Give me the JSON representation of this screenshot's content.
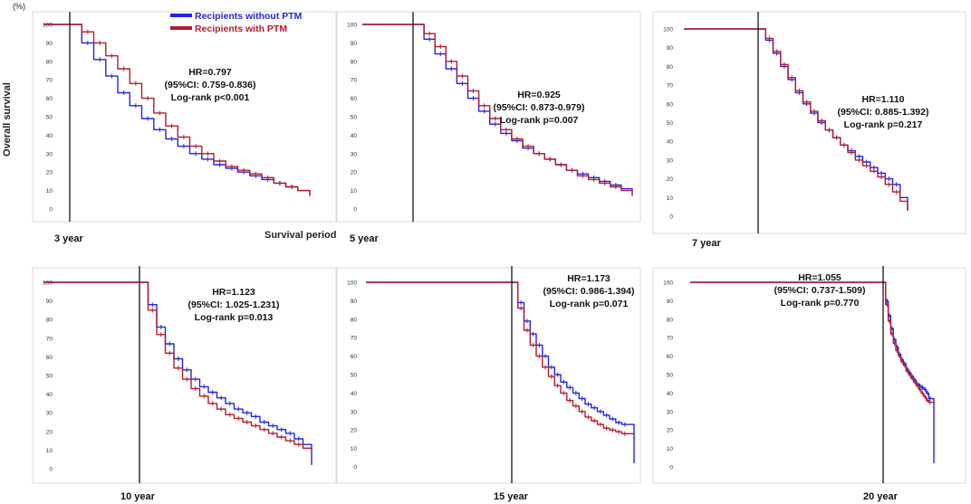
{
  "figure": {
    "unit_label": "(%)",
    "ylabel": "Overall survival",
    "survival_period_label": "Survival period",
    "y_ticks": [
      0,
      10,
      20,
      30,
      40,
      50,
      60,
      70,
      80,
      90,
      100
    ],
    "legend": [
      {
        "name": "Recipients without PTM",
        "color": "#2323e6"
      },
      {
        "name": "Recipients with PTM",
        "color": "#b01c2e"
      }
    ]
  },
  "colors": {
    "without_ptm": "#2323e6",
    "with_ptm": "#b01c2e",
    "landmark": "#000000"
  },
  "chart_data": [
    {
      "type": "line",
      "landmark_label": "3 year",
      "hr": "HR=0.797",
      "ci": "(95%CI: 0.759-0.836)",
      "logrank": "Log-rank p<0.001",
      "x": [
        0,
        0.05,
        0.1,
        0.15,
        0.2,
        0.25,
        0.3,
        0.35,
        0.4,
        0.45,
        0.5,
        0.55,
        0.6,
        0.65,
        0.7,
        0.75,
        0.8,
        0.85,
        0.9,
        0.95,
        1.0
      ],
      "series": [
        {
          "name": "Recipients without PTM",
          "values": [
            100,
            90,
            81,
            72,
            63,
            56,
            49,
            43,
            38,
            34,
            30,
            27,
            24,
            22,
            20,
            18,
            16,
            14,
            12,
            10,
            8
          ]
        },
        {
          "name": "Recipients with PTM",
          "values": [
            100,
            96,
            90,
            83,
            76,
            68,
            60,
            52,
            45,
            39,
            34,
            30,
            26,
            23,
            21,
            19,
            17,
            14,
            12,
            10,
            7
          ]
        }
      ]
    },
    {
      "type": "line",
      "landmark_label": "5 year",
      "hr": "HR=0.925",
      "ci": "(95%CI: 0.873-0.979)",
      "logrank": "Log-rank p=0.007",
      "x": [
        0,
        0.05,
        0.1,
        0.15,
        0.2,
        0.25,
        0.3,
        0.35,
        0.4,
        0.45,
        0.5,
        0.55,
        0.6,
        0.65,
        0.7,
        0.75,
        0.8,
        0.85,
        0.9,
        0.95,
        1.0
      ],
      "series": [
        {
          "name": "Recipients without PTM",
          "values": [
            100,
            92,
            84,
            76,
            68,
            60,
            53,
            46,
            41,
            37,
            33,
            30,
            27,
            24,
            21,
            19,
            17,
            15,
            13,
            11,
            9
          ]
        },
        {
          "name": "Recipients with PTM",
          "values": [
            100,
            95,
            88,
            80,
            72,
            64,
            56,
            49,
            43,
            38,
            34,
            30,
            27,
            24,
            21,
            18,
            16,
            14,
            12,
            10,
            7
          ]
        }
      ]
    },
    {
      "type": "line",
      "landmark_label": "7 year",
      "hr": "HR=1.110",
      "ci": "(95%CI: 0.885-1.392)",
      "logrank": "Log-rank p=0.217",
      "x": [
        0,
        0.05,
        0.1,
        0.15,
        0.2,
        0.25,
        0.3,
        0.35,
        0.4,
        0.45,
        0.5,
        0.55,
        0.6,
        0.65,
        0.7,
        0.75,
        0.8,
        0.85,
        0.9,
        0.95,
        1.0
      ],
      "series": [
        {
          "name": "Recipients without PTM",
          "values": [
            100,
            94,
            87,
            80,
            73,
            66,
            60,
            55,
            50,
            46,
            42,
            38,
            35,
            32,
            29,
            26,
            23,
            20,
            17,
            10,
            3
          ]
        },
        {
          "name": "Recipients with PTM",
          "values": [
            100,
            95,
            88,
            81,
            74,
            67,
            61,
            56,
            51,
            46,
            42,
            38,
            34,
            30,
            27,
            24,
            21,
            17,
            13,
            8,
            3
          ]
        }
      ]
    },
    {
      "type": "line",
      "landmark_label": "10 year",
      "hr": "HR=1.123",
      "ci": "(95%CI: 1.025-1.231)",
      "logrank": "Log-rank p=0.013",
      "x": [
        0,
        0.05,
        0.1,
        0.15,
        0.2,
        0.25,
        0.3,
        0.35,
        0.4,
        0.45,
        0.5,
        0.55,
        0.6,
        0.65,
        0.7,
        0.75,
        0.8,
        0.85,
        0.9,
        0.95,
        1.0
      ],
      "series": [
        {
          "name": "Recipients without PTM",
          "values": [
            100,
            88,
            76,
            67,
            59,
            53,
            48,
            44,
            41,
            38,
            35,
            32,
            30,
            28,
            25,
            23,
            21,
            19,
            16,
            13,
            2
          ]
        },
        {
          "name": "Recipients with PTM",
          "values": [
            100,
            85,
            72,
            62,
            54,
            48,
            43,
            39,
            35,
            32,
            29,
            27,
            25,
            23,
            21,
            19,
            17,
            15,
            13,
            11,
            10
          ]
        }
      ]
    },
    {
      "type": "line",
      "landmark_label": "15 year",
      "hr": "HR=1.173",
      "ci": "(95%CI: 0.986-1.394)",
      "logrank": "Log-rank p=0.071",
      "x": [
        0,
        0.05,
        0.1,
        0.15,
        0.2,
        0.25,
        0.3,
        0.35,
        0.4,
        0.45,
        0.5,
        0.55,
        0.6,
        0.65,
        0.7,
        0.75,
        0.8,
        0.85,
        0.9,
        0.95,
        1.0
      ],
      "series": [
        {
          "name": "Recipients without PTM",
          "values": [
            100,
            89,
            79,
            72,
            66,
            60,
            54,
            50,
            46,
            43,
            40,
            37,
            34,
            32,
            30,
            28,
            26,
            24,
            23,
            23,
            2
          ]
        },
        {
          "name": "Recipients with PTM",
          "values": [
            100,
            86,
            74,
            66,
            60,
            54,
            49,
            44,
            40,
            36,
            33,
            30,
            27,
            25,
            23,
            21,
            20,
            19,
            18,
            18,
            18
          ]
        }
      ]
    },
    {
      "type": "line",
      "landmark_label": "20 year",
      "hr": "HR=1.055",
      "ci": "(95%CI: 0.737-1.509)",
      "logrank": "Log-rank p=0.770",
      "x": [
        0,
        0.05,
        0.1,
        0.15,
        0.2,
        0.25,
        0.3,
        0.35,
        0.4,
        0.45,
        0.5,
        0.55,
        0.6,
        0.65,
        0.7,
        0.75,
        0.8,
        0.85,
        0.9,
        0.95,
        1.0
      ],
      "series": [
        {
          "name": "Recipients without PTM",
          "values": [
            100,
            90,
            82,
            75,
            69,
            65,
            61,
            58,
            56,
            53,
            51,
            49,
            47,
            45,
            44,
            43,
            42,
            40,
            37,
            37,
            2
          ]
        },
        {
          "name": "Recipients with PTM",
          "values": [
            100,
            88,
            79,
            72,
            67,
            63,
            60,
            57,
            55,
            52,
            50,
            48,
            46,
            44,
            42,
            40,
            38,
            36,
            35,
            35,
            35
          ]
        }
      ]
    }
  ]
}
